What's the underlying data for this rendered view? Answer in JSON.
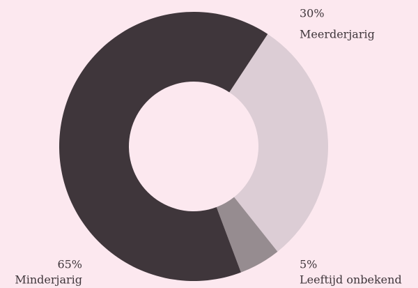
{
  "chart_data": {
    "type": "donut",
    "categories": [
      "Meerderjarig",
      "Leeftijd onbekend",
      "Minderjarig"
    ],
    "values": [
      30,
      5,
      65
    ],
    "value_labels": [
      "30%",
      "5%",
      "65%"
    ],
    "colors": [
      "#dccdd5",
      "#968c90",
      "#3f363b"
    ]
  }
}
